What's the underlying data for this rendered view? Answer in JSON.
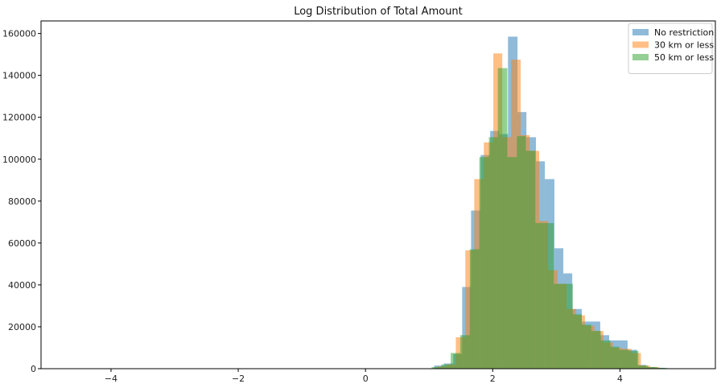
{
  "chart_data": {
    "type": "histogram",
    "title": "Log Distribution of Total Amount",
    "xlabel": "",
    "ylabel": "",
    "xlim": [
      -5.1,
      5.5
    ],
    "ylim": [
      0,
      166000
    ],
    "x_ticks": [
      -4,
      -2,
      0,
      2,
      4
    ],
    "x_tick_labels": [
      "−4",
      "−2",
      "0",
      "2",
      "4"
    ],
    "y_ticks": [
      0,
      20000,
      40000,
      60000,
      80000,
      100000,
      120000,
      140000,
      160000
    ],
    "y_tick_labels": [
      "0",
      "20000",
      "40000",
      "60000",
      "80000",
      "100000",
      "120000",
      "140000",
      "160000"
    ],
    "grid": false,
    "legend_position": "top-right",
    "series": [
      {
        "name": "No restriction",
        "color": "#1f77b4",
        "opacity": 0.5,
        "bins": [
          [
            1.08,
            1.23,
            1500
          ],
          [
            1.23,
            1.38,
            2500
          ],
          [
            1.38,
            1.52,
            7000
          ],
          [
            1.52,
            1.66,
            39000
          ],
          [
            1.66,
            1.81,
            75500
          ],
          [
            1.81,
            1.96,
            102000
          ],
          [
            1.96,
            2.1,
            113500
          ],
          [
            2.1,
            2.24,
            112000
          ],
          [
            2.24,
            2.39,
            158500
          ],
          [
            2.39,
            2.53,
            122500
          ],
          [
            2.53,
            2.68,
            110500
          ],
          [
            2.68,
            2.82,
            99000
          ],
          [
            2.82,
            2.97,
            90500
          ],
          [
            2.97,
            3.11,
            57500
          ],
          [
            3.11,
            3.25,
            45500
          ],
          [
            3.25,
            3.4,
            28500
          ],
          [
            3.4,
            3.54,
            22500
          ],
          [
            3.54,
            3.69,
            22500
          ],
          [
            3.69,
            3.83,
            16000
          ],
          [
            3.83,
            3.98,
            13500
          ],
          [
            3.98,
            4.12,
            13500
          ],
          [
            4.12,
            4.27,
            9000
          ],
          [
            4.27,
            4.41,
            1800
          ],
          [
            4.41,
            4.56,
            800
          ],
          [
            4.56,
            4.7,
            400
          ],
          [
            4.7,
            4.85,
            200
          ]
        ]
      },
      {
        "name": "30 km or less",
        "color": "#ff7f0e",
        "opacity": 0.5,
        "bins": [
          [
            1.12,
            1.27,
            1000
          ],
          [
            1.27,
            1.42,
            2000
          ],
          [
            1.42,
            1.57,
            15000
          ],
          [
            1.57,
            1.71,
            56500
          ],
          [
            1.71,
            1.86,
            90500
          ],
          [
            1.86,
            2.01,
            108000
          ],
          [
            2.01,
            2.15,
            150500
          ],
          [
            2.15,
            2.29,
            110500
          ],
          [
            2.29,
            2.44,
            147500
          ],
          [
            2.44,
            2.58,
            111500
          ],
          [
            2.58,
            2.73,
            104000
          ],
          [
            2.73,
            2.87,
            70500
          ],
          [
            2.87,
            3.02,
            47000
          ],
          [
            3.02,
            3.16,
            40500
          ],
          [
            3.16,
            3.31,
            28500
          ],
          [
            3.31,
            3.45,
            25500
          ],
          [
            3.45,
            3.6,
            20500
          ],
          [
            3.6,
            3.74,
            18000
          ],
          [
            3.74,
            3.89,
            12500
          ],
          [
            3.89,
            4.03,
            10000
          ],
          [
            4.03,
            4.18,
            9500
          ],
          [
            4.18,
            4.33,
            7500
          ],
          [
            4.33,
            4.47,
            1500
          ],
          [
            4.47,
            4.62,
            700
          ]
        ]
      },
      {
        "name": "50 km or less",
        "color": "#2ca02c",
        "opacity": 0.5,
        "bins": [
          [
            1.04,
            1.19,
            800
          ],
          [
            1.19,
            1.34,
            2000
          ],
          [
            1.34,
            1.49,
            7500
          ],
          [
            1.49,
            1.64,
            16000
          ],
          [
            1.64,
            1.79,
            57000
          ],
          [
            1.79,
            1.94,
            101000
          ],
          [
            1.94,
            2.08,
            110500
          ],
          [
            2.08,
            2.23,
            143500
          ],
          [
            2.23,
            2.38,
            101000
          ],
          [
            2.38,
            2.52,
            111000
          ],
          [
            2.52,
            2.67,
            104000
          ],
          [
            2.67,
            2.81,
            69500
          ],
          [
            2.81,
            2.96,
            69500
          ],
          [
            2.96,
            3.11,
            40500
          ],
          [
            3.11,
            3.26,
            40500
          ],
          [
            3.26,
            3.4,
            26000
          ],
          [
            3.4,
            3.55,
            21000
          ],
          [
            3.55,
            3.7,
            18000
          ],
          [
            3.7,
            3.85,
            13500
          ],
          [
            3.85,
            3.99,
            10500
          ],
          [
            3.99,
            4.14,
            9000
          ],
          [
            4.14,
            4.29,
            8500
          ],
          [
            4.29,
            4.44,
            1500
          ],
          [
            4.44,
            4.59,
            800
          ],
          [
            4.59,
            4.74,
            400
          ],
          [
            4.74,
            4.89,
            200
          ],
          [
            4.89,
            5.03,
            100
          ]
        ]
      }
    ]
  }
}
